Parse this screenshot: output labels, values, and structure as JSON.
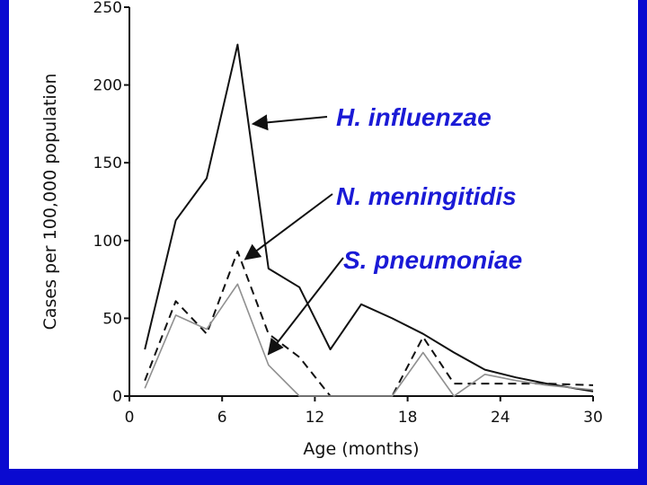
{
  "chart_data": {
    "type": "line",
    "xlabel": "Age (months)",
    "ylabel": "Cases per 100,000 population",
    "xlim": [
      0,
      30
    ],
    "ylim": [
      0,
      250
    ],
    "xticks": [
      0,
      6,
      12,
      18,
      24,
      30
    ],
    "yticks": [
      0,
      50,
      100,
      150,
      200,
      250
    ],
    "grid": false,
    "legend": "none",
    "series": [
      {
        "name": "H. influenzae",
        "style": "solid",
        "color": "#111111",
        "x": [
          1,
          3,
          5,
          7,
          9,
          11,
          13,
          15,
          17,
          19,
          21,
          23,
          25,
          27,
          30
        ],
        "y": [
          30,
          113,
          140,
          226,
          82,
          70,
          30,
          59,
          50,
          40,
          28,
          17,
          12,
          8,
          3
        ]
      },
      {
        "name": "N. meningitidis",
        "style": "dashed",
        "color": "#111111",
        "x": [
          1,
          3,
          5,
          7,
          9,
          11,
          13,
          15,
          17,
          19,
          21,
          23,
          25,
          27,
          30
        ],
        "y": [
          10,
          61,
          40,
          93,
          40,
          25,
          0,
          0,
          0,
          38,
          8,
          8,
          8,
          8,
          7
        ]
      },
      {
        "name": "S. pneumoniae",
        "style": "solid",
        "color": "#909090",
        "x": [
          1,
          3,
          5,
          7,
          9,
          11,
          13,
          15,
          17,
          19,
          21,
          23,
          25,
          27,
          30
        ],
        "y": [
          5,
          52,
          43,
          72,
          20,
          0,
          0,
          0,
          0,
          28,
          0,
          14,
          10,
          7,
          4
        ]
      }
    ],
    "annotations": [
      {
        "text": "H. influenzae",
        "series": 0,
        "point_x": 8,
        "point_y": 175
      },
      {
        "text": "N. meningitidis",
        "series": 1,
        "point_x": 7.5,
        "point_y": 88
      },
      {
        "text": "S. pneumoniae",
        "series": 2,
        "point_x": 9,
        "point_y": 27
      }
    ]
  }
}
